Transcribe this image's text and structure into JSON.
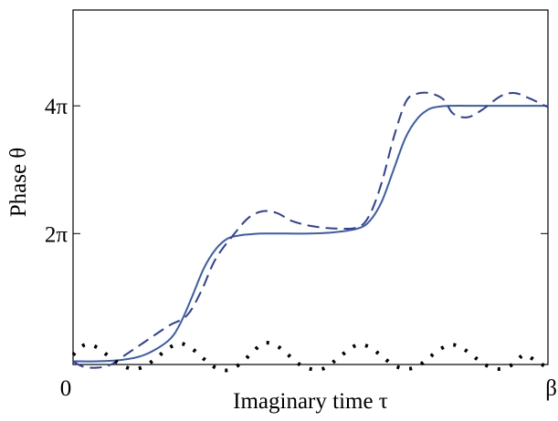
{
  "chart_data": {
    "type": "line",
    "xlabel": "Imaginary time τ",
    "ylabel": "Phase θ",
    "x_ticks": [
      {
        "value": 0,
        "label": "0"
      },
      {
        "value": 1,
        "label": "β"
      }
    ],
    "y_ticks": [
      {
        "value": 2,
        "label": "2π"
      },
      {
        "value": 4,
        "label": "4π"
      }
    ],
    "y_unit": "π",
    "xlim": [
      0,
      1
    ],
    "ylim": [
      -0.05,
      5.5
    ],
    "grid": false,
    "series": [
      {
        "style": "solid",
        "color": "#3a5bb0",
        "x": [
          0,
          0.05,
          0.1,
          0.15,
          0.2,
          0.225,
          0.25,
          0.275,
          0.3,
          0.325,
          0.35,
          0.375,
          0.4,
          0.45,
          0.5,
          0.55,
          0.6,
          0.625,
          0.65,
          0.675,
          0.7,
          0.725,
          0.75,
          0.775,
          0.8,
          0.85,
          0.9,
          0.95,
          1.0
        ],
        "y": [
          0.0,
          0.0,
          0.02,
          0.1,
          0.32,
          0.58,
          1.0,
          1.45,
          1.75,
          1.92,
          1.97,
          1.99,
          2.0,
          2.0,
          2.0,
          2.02,
          2.08,
          2.2,
          2.5,
          3.0,
          3.5,
          3.8,
          3.95,
          3.99,
          4.0,
          4.0,
          4.0,
          4.0,
          4.0
        ]
      },
      {
        "style": "dashed",
        "color": "#2f3f9a",
        "x": [
          0,
          0.02,
          0.05,
          0.08,
          0.11,
          0.15,
          0.2,
          0.24,
          0.27,
          0.3,
          0.34,
          0.37,
          0.4,
          0.43,
          0.46,
          0.5,
          0.55,
          0.6,
          0.625,
          0.65,
          0.675,
          0.7,
          0.72,
          0.75,
          0.78,
          0.8,
          0.83,
          0.86,
          0.9,
          0.93,
          0.96,
          1.0
        ],
        "y": [
          0.0,
          -0.08,
          -0.1,
          -0.05,
          0.1,
          0.3,
          0.55,
          0.72,
          1.1,
          1.6,
          2.0,
          2.25,
          2.35,
          2.32,
          2.2,
          2.12,
          2.08,
          2.1,
          2.3,
          2.8,
          3.5,
          4.05,
          4.18,
          4.2,
          4.1,
          3.88,
          3.82,
          3.93,
          4.15,
          4.2,
          4.12,
          3.98
        ]
      },
      {
        "style": "dotted",
        "color": "#000000",
        "x": [
          0,
          0.025,
          0.05,
          0.075,
          0.1,
          0.125,
          0.15,
          0.175,
          0.2,
          0.225,
          0.25,
          0.275,
          0.3,
          0.325,
          0.35,
          0.375,
          0.4,
          0.425,
          0.45,
          0.475,
          0.5,
          0.525,
          0.55,
          0.575,
          0.6,
          0.625,
          0.65,
          0.675,
          0.7,
          0.725,
          0.75,
          0.775,
          0.8,
          0.825,
          0.85,
          0.875,
          0.9,
          0.925,
          0.95,
          0.975,
          1.0
        ],
        "y": [
          0.1,
          0.26,
          0.22,
          0.08,
          -0.05,
          -0.12,
          -0.08,
          0.05,
          0.2,
          0.28,
          0.2,
          0.04,
          -0.1,
          -0.14,
          -0.05,
          0.12,
          0.28,
          0.26,
          0.12,
          -0.04,
          -0.12,
          -0.12,
          0.0,
          0.15,
          0.26,
          0.22,
          0.08,
          -0.06,
          -0.12,
          -0.08,
          0.06,
          0.2,
          0.26,
          0.18,
          0.04,
          -0.08,
          -0.12,
          -0.05,
          0.1,
          0.0,
          -0.1
        ]
      }
    ]
  }
}
